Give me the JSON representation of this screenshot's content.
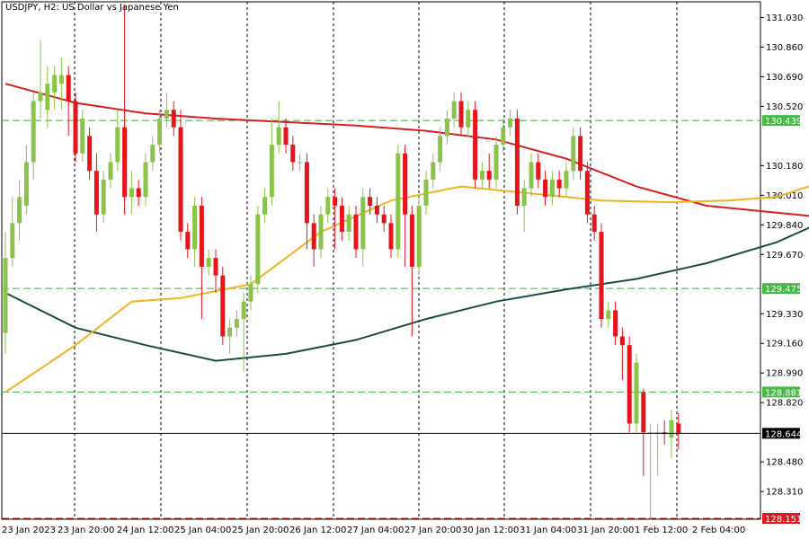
{
  "window": {
    "title": "USDJPY, H2:  US Dollar vs Japanese Yen"
  },
  "colors": {
    "bull": "#8bc34a",
    "bear": "#e8141b",
    "ma_fast": "#f0b21f",
    "ma_mid": "#1a4d3e",
    "ma_slow": "#d81e1e",
    "level_line": "#38b13a",
    "level_label_bg": "#44bb44",
    "price_line": "#000000",
    "price_label_bg": "#000000",
    "low_line": "#e8141b",
    "low_label_bg": "#e8141b",
    "grid": "#000000"
  },
  "chart_data": {
    "type": "candlestick",
    "symbol": "USDJPY",
    "timeframe": "H2",
    "ylim": [
      128.151,
      131.12
    ],
    "y_ticks": [
      "131.030",
      "130.860",
      "130.690",
      "130.520",
      "130.180",
      "130.010",
      "129.840",
      "129.670",
      "129.330",
      "129.160",
      "128.990",
      "128.820",
      "128.480",
      "128.310"
    ],
    "x_labels": [
      "23 Jan 2023",
      "23 Jan 20:00",
      "24 Jan 12:00",
      "25 Jan 04:00",
      "25 Jan 20:00",
      "26 Jan 12:00",
      "27 Jan 04:00",
      "27 Jan 20:00",
      "30 Jan 12:00",
      "31 Jan 04:00",
      "31 Jan 20:00",
      "1 Feb 12:00",
      "2 Feb 04:00"
    ],
    "horizontal_levels": [
      {
        "value": 130.439,
        "label": "130.439",
        "style": "dashed-green"
      },
      {
        "value": 129.475,
        "label": "129.475",
        "style": "dashed-green"
      },
      {
        "value": 128.881,
        "label": "128.881",
        "style": "dashed-green"
      }
    ],
    "current_price": {
      "value": 128.644,
      "label": "128.644"
    },
    "low_marker": {
      "value": 128.151,
      "label": "128.151"
    },
    "candles": [
      [
        129.22,
        129.65,
        129.1,
        129.8
      ],
      [
        129.65,
        129.85,
        129.6,
        130.0
      ],
      [
        129.85,
        130.0,
        129.75,
        130.1
      ],
      [
        129.95,
        130.2,
        129.9,
        130.3
      ],
      [
        130.2,
        130.55,
        130.1,
        130.6
      ],
      [
        130.55,
        130.6,
        130.45,
        130.9
      ],
      [
        130.5,
        130.65,
        130.4,
        130.75
      ],
      [
        130.6,
        130.7,
        130.5,
        130.75
      ],
      [
        130.65,
        130.7,
        130.5,
        130.8
      ],
      [
        130.7,
        130.55,
        130.35,
        130.75
      ],
      [
        130.55,
        130.25,
        130.2,
        130.6
      ],
      [
        130.25,
        130.45,
        130.2,
        130.5
      ],
      [
        130.35,
        130.15,
        130.1,
        130.4
      ],
      [
        130.15,
        129.9,
        129.8,
        130.25
      ],
      [
        129.9,
        130.1,
        129.85,
        130.15
      ],
      [
        130.1,
        130.2,
        130.05,
        130.25
      ],
      [
        130.2,
        130.4,
        130.15,
        130.5
      ],
      [
        130.4,
        130.0,
        129.9,
        131.1
      ],
      [
        130.0,
        130.05,
        129.9,
        130.15
      ],
      [
        130.05,
        130.0,
        129.95,
        130.1
      ],
      [
        130.0,
        130.2,
        129.95,
        130.25
      ],
      [
        130.2,
        130.3,
        130.15,
        130.35
      ],
      [
        130.3,
        130.45,
        130.25,
        130.5
      ],
      [
        130.45,
        130.5,
        130.4,
        130.6
      ],
      [
        130.5,
        130.4,
        130.35,
        130.55
      ],
      [
        130.4,
        129.8,
        129.75,
        130.5
      ],
      [
        129.8,
        129.7,
        129.65,
        129.85
      ],
      [
        129.7,
        129.95,
        129.6,
        130.0
      ],
      [
        129.95,
        129.6,
        129.3,
        130.0
      ],
      [
        129.6,
        129.65,
        129.55,
        129.7
      ],
      [
        129.65,
        129.55,
        129.45,
        129.7
      ],
      [
        129.55,
        129.2,
        129.15,
        129.6
      ],
      [
        129.2,
        129.25,
        129.1,
        129.3
      ],
      [
        129.25,
        129.3,
        129.2,
        129.35
      ],
      [
        129.3,
        129.4,
        129.0,
        129.45
      ],
      [
        129.4,
        129.5,
        129.35,
        129.55
      ],
      [
        129.5,
        129.9,
        129.45,
        129.95
      ],
      [
        129.9,
        130.0,
        129.85,
        130.05
      ],
      [
        130.0,
        130.3,
        129.95,
        130.45
      ],
      [
        130.3,
        130.4,
        130.25,
        130.55
      ],
      [
        130.4,
        130.3,
        130.25,
        130.45
      ],
      [
        130.3,
        130.2,
        130.15,
        130.35
      ],
      [
        130.2,
        130.2,
        130.15,
        130.25
      ],
      [
        130.2,
        129.85,
        129.7,
        130.25
      ],
      [
        129.85,
        129.7,
        129.6,
        129.9
      ],
      [
        129.7,
        129.9,
        129.65,
        129.95
      ],
      [
        129.9,
        130.0,
        129.85,
        130.05
      ],
      [
        130.0,
        129.95,
        129.7,
        130.05
      ],
      [
        129.95,
        129.8,
        129.75,
        130.0
      ],
      [
        129.8,
        129.9,
        129.75,
        129.95
      ],
      [
        129.9,
        129.7,
        129.65,
        129.95
      ],
      [
        129.7,
        130.0,
        129.6,
        130.05
      ],
      [
        130.0,
        129.95,
        129.9,
        130.05
      ],
      [
        129.95,
        129.9,
        129.85,
        130.0
      ],
      [
        129.9,
        129.85,
        129.8,
        129.95
      ],
      [
        129.85,
        129.7,
        129.65,
        129.9
      ],
      [
        129.7,
        130.25,
        129.65,
        130.3
      ],
      [
        130.25,
        129.9,
        129.6,
        130.3
      ],
      [
        129.9,
        129.6,
        129.2,
        129.95
      ],
      [
        129.6,
        129.95,
        129.55,
        130.0
      ],
      [
        129.95,
        130.1,
        129.9,
        130.15
      ],
      [
        130.1,
        130.2,
        130.05,
        130.25
      ],
      [
        130.2,
        130.35,
        130.15,
        130.4
      ],
      [
        130.35,
        130.45,
        130.3,
        130.5
      ],
      [
        130.45,
        130.55,
        130.4,
        130.6
      ],
      [
        130.55,
        130.4,
        130.35,
        130.6
      ],
      [
        130.4,
        130.5,
        130.35,
        130.55
      ],
      [
        130.5,
        130.1,
        130.05,
        130.55
      ],
      [
        130.1,
        130.15,
        130.05,
        130.2
      ],
      [
        130.15,
        130.1,
        130.05,
        130.25
      ],
      [
        130.1,
        130.3,
        130.05,
        130.35
      ],
      [
        130.3,
        130.4,
        130.25,
        130.45
      ],
      [
        130.4,
        130.45,
        130.35,
        130.5
      ],
      [
        130.45,
        129.95,
        129.9,
        130.5
      ],
      [
        129.95,
        130.05,
        129.8,
        130.1
      ],
      [
        130.05,
        130.2,
        130.0,
        130.25
      ],
      [
        130.2,
        130.1,
        130.05,
        130.25
      ],
      [
        130.1,
        130.0,
        129.95,
        130.15
      ],
      [
        130.0,
        130.1,
        129.95,
        130.15
      ],
      [
        130.1,
        130.05,
        130.0,
        130.15
      ],
      [
        130.05,
        130.15,
        130.0,
        130.2
      ],
      [
        130.15,
        130.35,
        130.1,
        130.4
      ],
      [
        130.35,
        130.15,
        130.1,
        130.4
      ],
      [
        130.15,
        129.9,
        129.85,
        130.2
      ],
      [
        129.9,
        129.8,
        129.75,
        129.95
      ],
      [
        129.8,
        129.3,
        129.25,
        129.85
      ],
      [
        129.3,
        129.35,
        129.25,
        129.4
      ],
      [
        129.35,
        129.2,
        129.15,
        129.4
      ],
      [
        129.2,
        129.15,
        128.95,
        129.25
      ],
      [
        129.15,
        128.7,
        128.65,
        129.2
      ],
      [
        128.7,
        129.05,
        128.65,
        129.1
      ],
      [
        128.88,
        128.65,
        128.4,
        128.9
      ],
      [
        128.65,
        128.65,
        128.15,
        128.7
      ],
      [
        128.65,
        128.65,
        128.4,
        128.7
      ],
      [
        128.65,
        128.64,
        128.58,
        128.72
      ],
      [
        128.62,
        128.72,
        128.5,
        128.78
      ],
      [
        128.7,
        128.64,
        128.55,
        128.76
      ]
    ],
    "ma_fast": [
      [
        0,
        128.88
      ],
      [
        10,
        129.15
      ],
      [
        18,
        129.4
      ],
      [
        25,
        129.42
      ],
      [
        35,
        129.5
      ],
      [
        45,
        129.8
      ],
      [
        55,
        129.98
      ],
      [
        65,
        130.06
      ],
      [
        75,
        130.02
      ],
      [
        85,
        129.98
      ],
      [
        95,
        129.97
      ],
      [
        103,
        129.98
      ],
      [
        110,
        130.0
      ],
      [
        116,
        130.08
      ],
      [
        121,
        130.13
      ],
      [
        126,
        130.08
      ],
      [
        132,
        129.9
      ],
      [
        137,
        129.84
      ]
    ],
    "ma_mid": [
      [
        0,
        129.45
      ],
      [
        10,
        129.25
      ],
      [
        20,
        129.15
      ],
      [
        30,
        129.06
      ],
      [
        40,
        129.1
      ],
      [
        50,
        129.18
      ],
      [
        60,
        129.3
      ],
      [
        70,
        129.4
      ],
      [
        80,
        129.47
      ],
      [
        90,
        129.53
      ],
      [
        100,
        129.62
      ],
      [
        110,
        129.74
      ],
      [
        120,
        129.92
      ],
      [
        126,
        130.01
      ],
      [
        131,
        129.97
      ],
      [
        136,
        129.93
      ]
    ],
    "ma_slow": [
      [
        0,
        130.65
      ],
      [
        10,
        130.54
      ],
      [
        20,
        130.48
      ],
      [
        30,
        130.45
      ],
      [
        40,
        130.43
      ],
      [
        50,
        130.41
      ],
      [
        60,
        130.38
      ],
      [
        70,
        130.33
      ],
      [
        80,
        130.22
      ],
      [
        90,
        130.06
      ],
      [
        100,
        129.95
      ],
      [
        110,
        129.91
      ],
      [
        120,
        129.87
      ],
      [
        128,
        129.79
      ],
      [
        137,
        129.68
      ]
    ]
  }
}
